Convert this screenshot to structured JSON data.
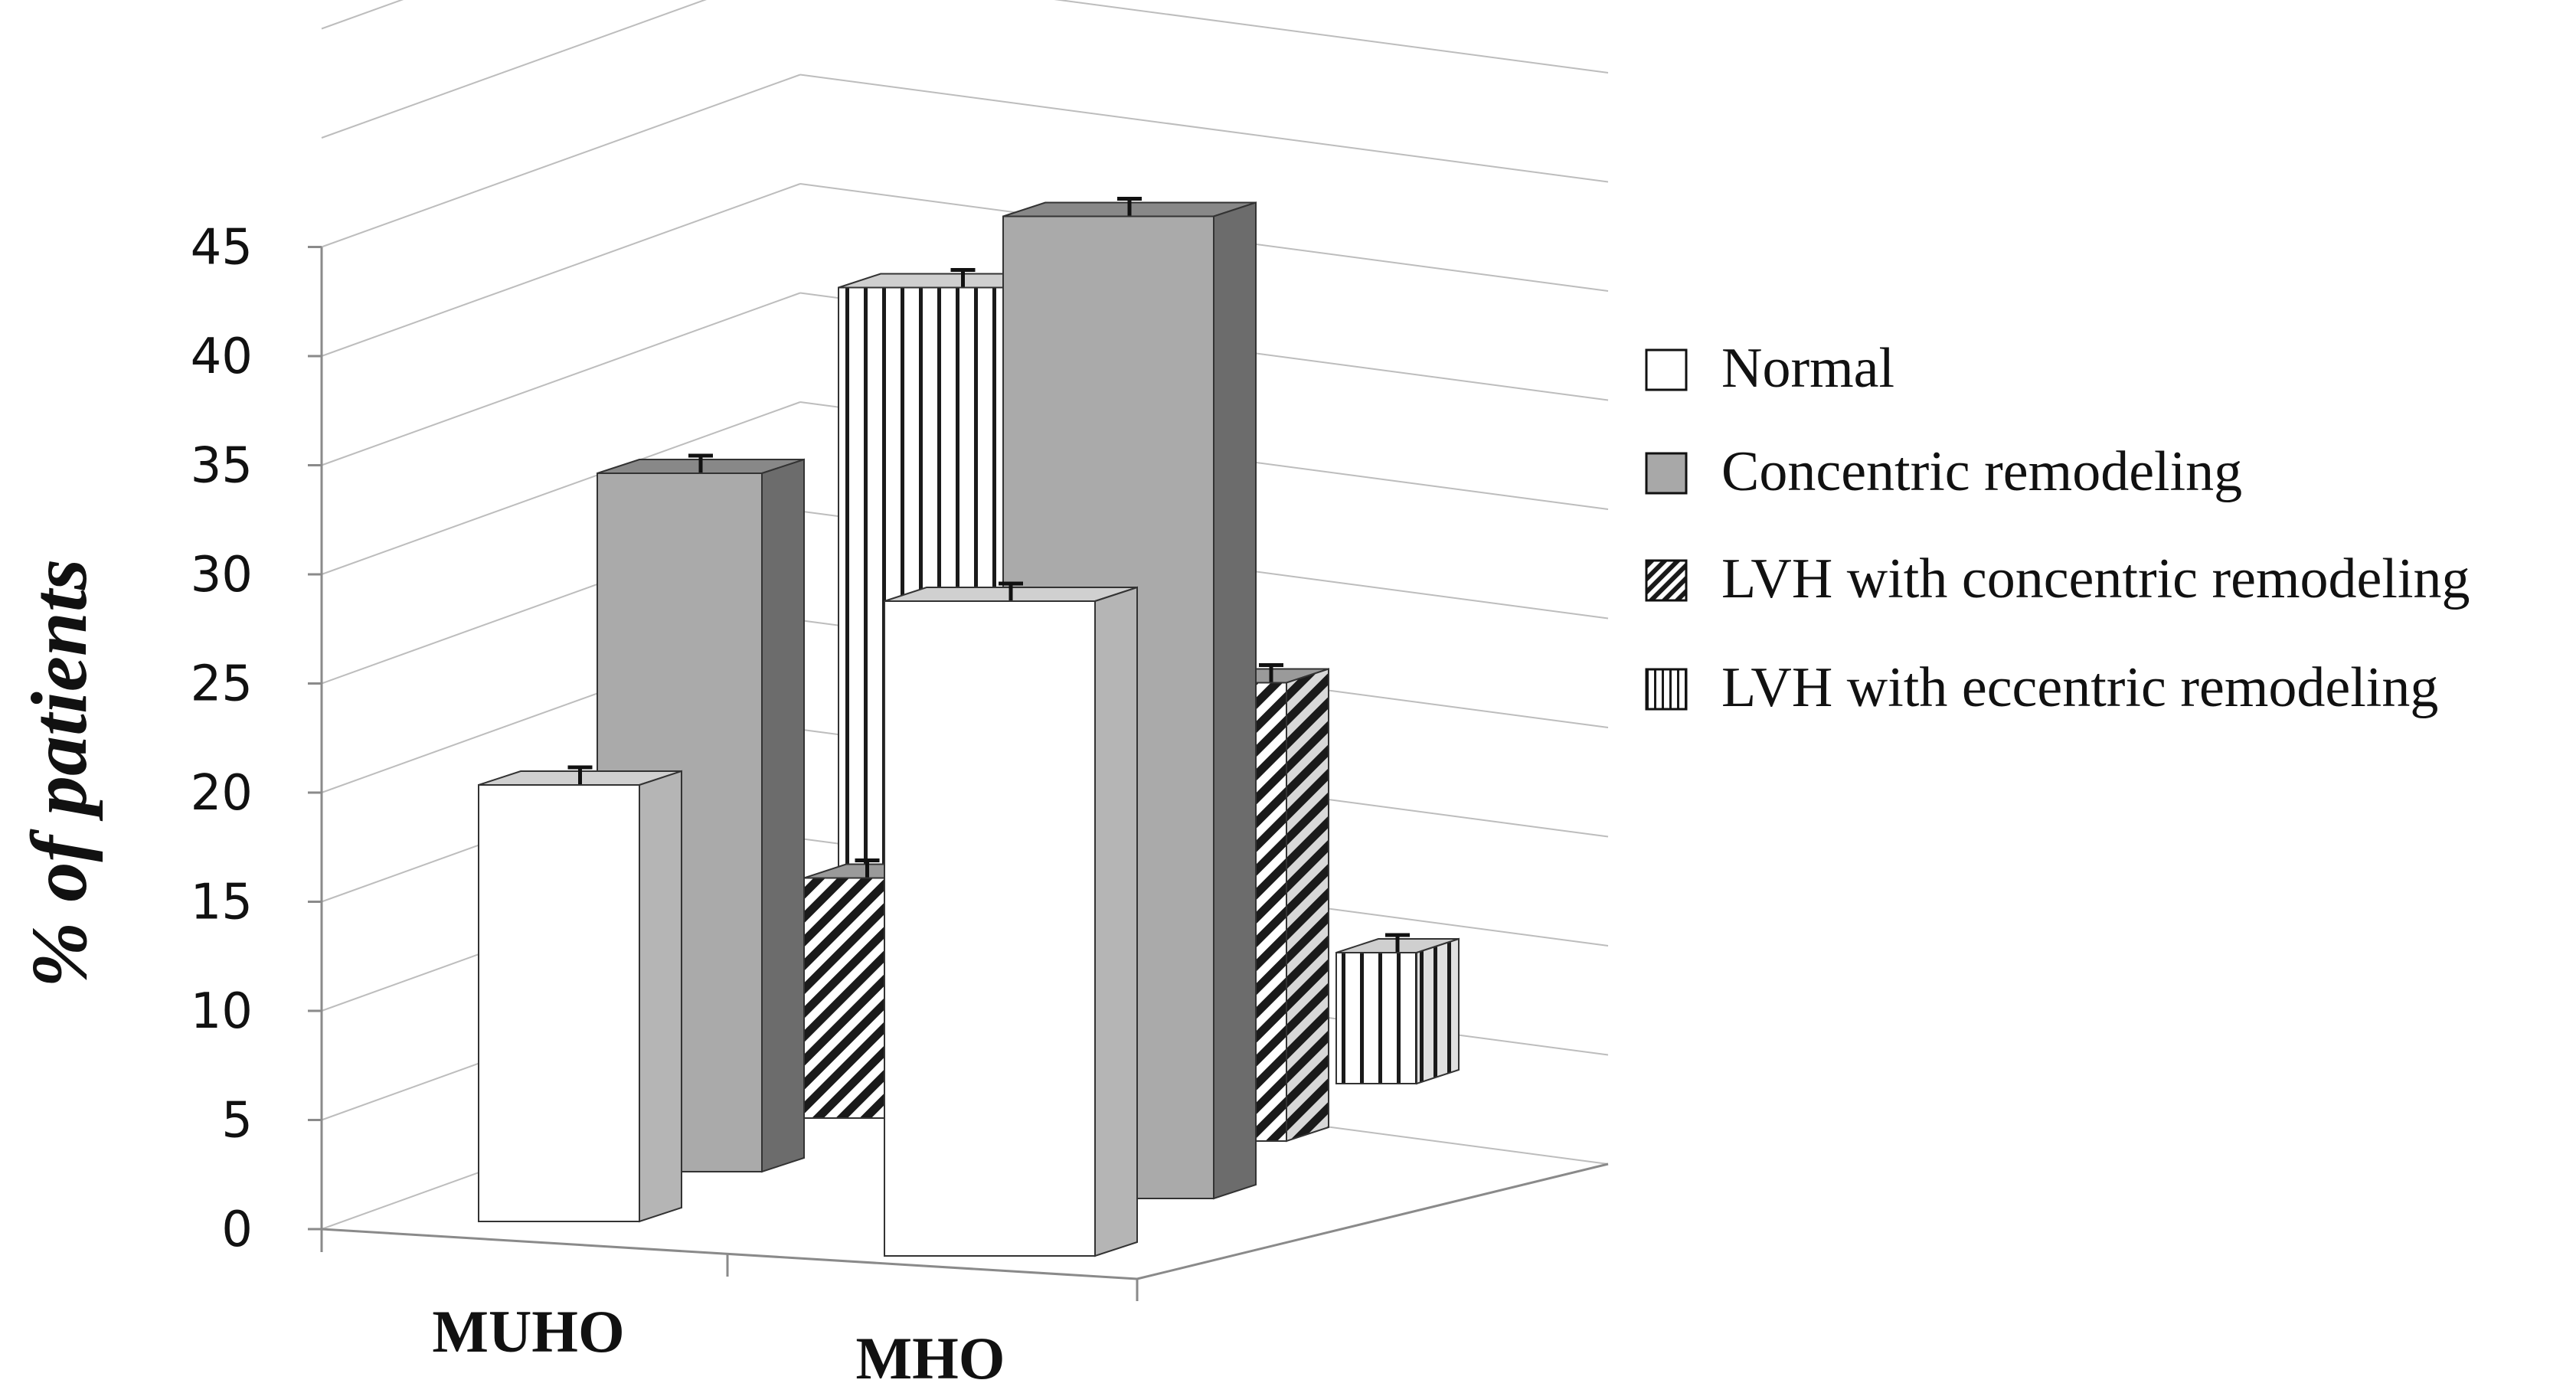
{
  "chart_data": {
    "type": "bar",
    "style": "3d-clustered",
    "title": "",
    "xlabel": "",
    "ylabel": "% of patients",
    "ylim": [
      0,
      45
    ],
    "yticks": [
      0,
      5,
      10,
      15,
      20,
      25,
      30,
      35,
      40,
      45
    ],
    "ytick_labels": [
      "0",
      "5",
      "10",
      "15",
      "20",
      "25",
      "30",
      "35",
      "40",
      "45"
    ],
    "grid": true,
    "legend_position": "right",
    "categories": [
      "MUHO",
      "MHO"
    ],
    "series": [
      {
        "name": "Normal",
        "values": [
          20,
          30
        ],
        "pattern": "white"
      },
      {
        "name": "Concentric remodeling",
        "values": [
          32,
          45
        ],
        "pattern": "gray"
      },
      {
        "name": "LVH with concentric remodeling",
        "values": [
          11,
          21
        ],
        "pattern": "diagonal"
      },
      {
        "name": "LVH with eccentric remodeling",
        "values": [
          37,
          6
        ],
        "pattern": "vertical"
      }
    ],
    "error_bars": true
  }
}
